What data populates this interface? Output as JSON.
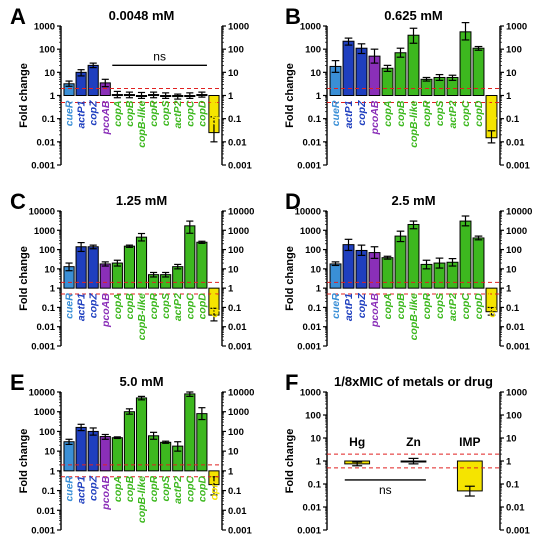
{
  "colors": {
    "cueR": "#3a8fd6",
    "actP1": "#1f3fbf",
    "copZ": "#1f3fbf",
    "pcoAB": "#8a2fb8",
    "copA": "#3db81f",
    "copB": "#3db81f",
    "copB-like": "#3db81f",
    "copR": "#3db81f",
    "copS": "#3db81f",
    "actP2": "#3db81f",
    "copC": "#3db81f",
    "copD": "#3db81f",
    "oprC": "#f5e400",
    "metal": "#f5e400",
    "threshold": "#e02020"
  },
  "chart_data": [
    {
      "panel": "A",
      "type": "bar",
      "title": "0.0048 mM",
      "ylabel": "Fold change",
      "yscale": "log",
      "ylim": [
        0.001,
        1000
      ],
      "yticks": [
        "0.001",
        "0.01",
        "0.1",
        "1",
        "10",
        "100",
        "1000"
      ],
      "thresholds": [
        2,
        0.5
      ],
      "categories": [
        "cueR",
        "actP1",
        "copZ",
        "pcoAB",
        "copA",
        "copB",
        "copB-like",
        "copR",
        "copS",
        "actP2",
        "copC",
        "copD",
        "oprC"
      ],
      "values": [
        3.2,
        10,
        20,
        3.5,
        1.1,
        1.1,
        1.0,
        1.1,
        1.0,
        0.9,
        1.0,
        1.1,
        0.025
      ],
      "err_low": [
        2.5,
        7,
        16,
        2.4,
        0.8,
        0.8,
        0.75,
        0.8,
        0.75,
        0.7,
        0.75,
        0.85,
        0.01
      ],
      "err_high": [
        4.2,
        13,
        25,
        5,
        1.5,
        1.4,
        1.35,
        1.4,
        1.3,
        1.15,
        1.3,
        1.4,
        0.12
      ],
      "annotation": "ns",
      "annotation_span": [
        "copA",
        "copD"
      ]
    },
    {
      "panel": "B",
      "type": "bar",
      "title": "0.625 mM",
      "ylabel": "Fold change",
      "yscale": "log",
      "ylim": [
        0.001,
        1000
      ],
      "yticks": [
        "0.001",
        "0.01",
        "0.1",
        "1",
        "10",
        "100",
        "1000"
      ],
      "thresholds": [
        2,
        0.5
      ],
      "categories": [
        "cueR",
        "actP1",
        "copZ",
        "pcoAB",
        "copA",
        "copB",
        "copB-like",
        "copR",
        "copS",
        "actP2",
        "copC",
        "copD",
        "oprC"
      ],
      "values": [
        18,
        220,
        110,
        50,
        15,
        70,
        400,
        5,
        6,
        6,
        560,
        110,
        0.015
      ],
      "err_low": [
        10,
        150,
        65,
        25,
        11,
        45,
        180,
        4.2,
        4.5,
        4.5,
        250,
        90,
        0.009
      ],
      "err_high": [
        32,
        300,
        170,
        100,
        20,
        110,
        800,
        6,
        8,
        7.5,
        1400,
        130,
        0.03
      ]
    },
    {
      "panel": "C",
      "type": "bar",
      "title": "1.25 mM",
      "ylabel": "Fold change",
      "yscale": "log",
      "ylim": [
        0.001,
        10000
      ],
      "yticks": [
        "0.001",
        "0.01",
        "0.1",
        "1",
        "10",
        "100",
        "1000",
        "10000"
      ],
      "thresholds": [
        2,
        0.5
      ],
      "categories": [
        "cueR",
        "actP1",
        "copZ",
        "pcoAB",
        "copA",
        "copB",
        "copB-like",
        "copR",
        "copS",
        "actP2",
        "copC",
        "copD",
        "oprC"
      ],
      "values": [
        13,
        140,
        140,
        18,
        20,
        150,
        440,
        5,
        5,
        13,
        1700,
        240,
        0.04
      ],
      "err_low": [
        8,
        80,
        110,
        14,
        14,
        130,
        280,
        3.8,
        3.8,
        10,
        700,
        210,
        0.02
      ],
      "err_high": [
        20,
        230,
        170,
        23,
        28,
        170,
        680,
        6.5,
        6.5,
        17,
        3000,
        270,
        0.09
      ]
    },
    {
      "panel": "D",
      "type": "bar",
      "title": "2.5 mM",
      "ylabel": "Fold change",
      "yscale": "log",
      "ylim": [
        0.001,
        10000
      ],
      "yticks": [
        "0.001",
        "0.01",
        "0.1",
        "1",
        "10",
        "100",
        "1000",
        "10000"
      ],
      "thresholds": [
        2,
        0.5
      ],
      "categories": [
        "cueR",
        "actP1",
        "copZ",
        "pcoAB",
        "copA",
        "copB",
        "copB-like",
        "copR",
        "copS",
        "actP2",
        "copC",
        "copD",
        "oprC"
      ],
      "values": [
        18,
        180,
        90,
        70,
        38,
        500,
        2000,
        17,
        20,
        22,
        3000,
        400,
        0.06
      ],
      "err_low": [
        15,
        90,
        50,
        35,
        32,
        260,
        1200,
        10,
        11,
        14,
        1700,
        320,
        0.04
      ],
      "err_high": [
        23,
        340,
        170,
        140,
        45,
        900,
        3000,
        28,
        36,
        34,
        5500,
        500,
        0.1
      ]
    },
    {
      "panel": "E",
      "type": "bar",
      "title": "5.0 mM",
      "ylabel": "Fold change",
      "yscale": "log",
      "ylim": [
        0.001,
        10000
      ],
      "yticks": [
        "0.001",
        "0.01",
        "0.1",
        "1",
        "10",
        "100",
        "1000",
        "10000"
      ],
      "thresholds": [
        2,
        0.5
      ],
      "categories": [
        "cueR",
        "actP1",
        "copZ",
        "pcoAB",
        "copA",
        "copB",
        "copB-like",
        "copR",
        "copS",
        "actP2",
        "copC",
        "copD",
        "oprC"
      ],
      "values": [
        30,
        160,
        100,
        55,
        48,
        1000,
        5000,
        60,
        28,
        18,
        8000,
        800,
        0.2
      ],
      "err_low": [
        22,
        110,
        65,
        40,
        44,
        750,
        4000,
        40,
        25,
        10,
        6000,
        400,
        0.06
      ],
      "err_high": [
        40,
        230,
        150,
        70,
        53,
        1400,
        6000,
        90,
        32,
        30,
        10000,
        1600,
        0.5
      ]
    },
    {
      "panel": "F",
      "type": "bar",
      "title": "1/8xMIC of metals or drug",
      "ylabel": "Fold change",
      "yscale": "log",
      "ylim": [
        0.001,
        1000
      ],
      "yticks": [
        "0.001",
        "0.01",
        "0.1",
        "1",
        "10",
        "100",
        "1000"
      ],
      "thresholds": [
        2,
        0.5
      ],
      "categories": [
        "Hg",
        "Zn",
        "IMP"
      ],
      "values": [
        0.75,
        1.0,
        0.05
      ],
      "err_low": [
        0.62,
        0.75,
        0.03
      ],
      "err_high": [
        0.9,
        1.3,
        0.08
      ],
      "annotation": "ns",
      "annotation_span": [
        "Hg",
        "Zn"
      ]
    }
  ]
}
